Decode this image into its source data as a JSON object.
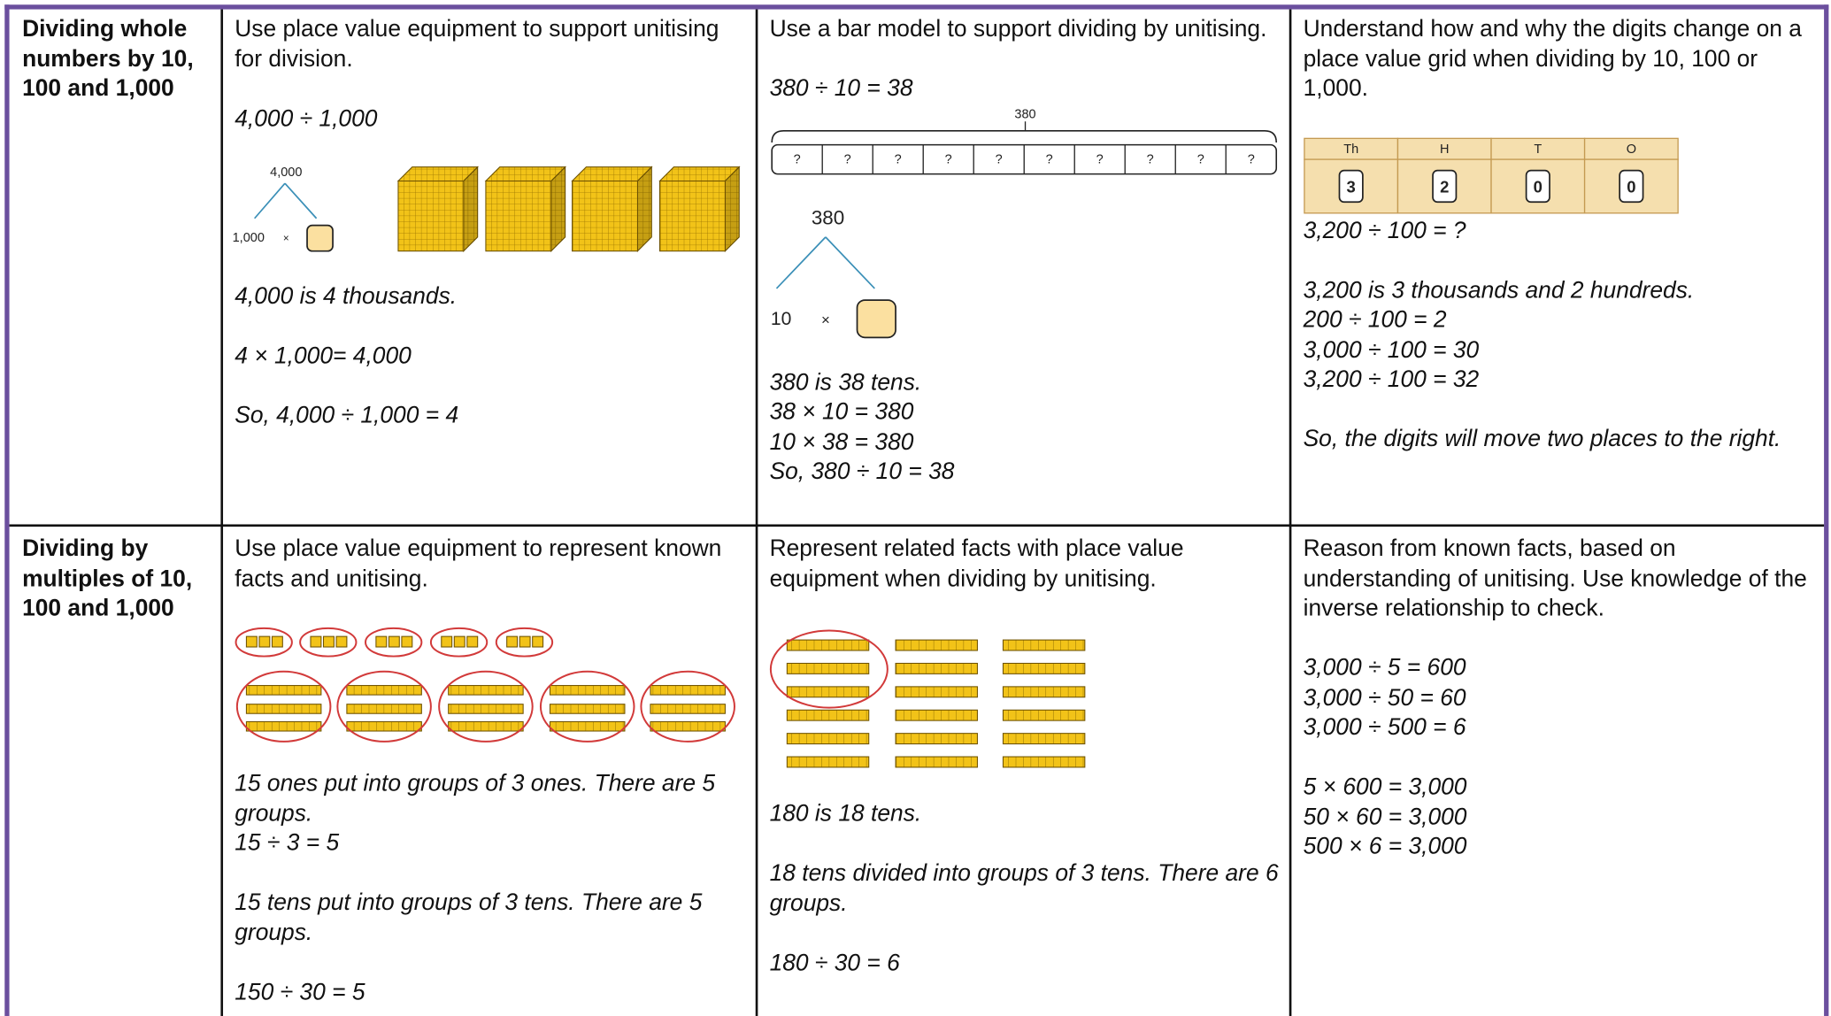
{
  "table": {
    "rows": [
      {
        "topic": "Dividing whole numbers by 10, 100 and 1,000",
        "cells": [
          {
            "intro": "Use place value equipment to support unitising for division.",
            "calculation": "4,000 ÷ 1,000",
            "number_bond": {
              "whole": "4,000",
              "part": "1,000",
              "operator": "×"
            },
            "paragraphs": [
              [
                "4,000 is 4 thousands."
              ],
              [
                "4 × 1,000= 4,000"
              ],
              [
                "So, 4,000 ÷ 1,000 = 4"
              ]
            ]
          },
          {
            "intro": "Use a bar model to support dividing by unitising.",
            "calculation": "380 ÷ 10 = 38",
            "bar_model": {
              "total": "380",
              "parts": [
                "?",
                "?",
                "?",
                "?",
                "?",
                "?",
                "?",
                "?",
                "?",
                "?"
              ]
            },
            "number_bond": {
              "whole": "380",
              "part": "10",
              "operator": "×"
            },
            "paragraphs": [
              [
                "380 is 38 tens.",
                "38 × 10 = 380",
                "10 × 38 = 380",
                "So, 380 ÷ 10 = 38"
              ]
            ]
          },
          {
            "intro": "Understand how and why the digits change on a place value grid when dividing by 10, 100 or 1,000.",
            "place_value_grid": {
              "headers": [
                "Th",
                "H",
                "T",
                "O"
              ],
              "digits": [
                "3",
                "2",
                "0",
                "0"
              ]
            },
            "paragraphs": [
              [
                "3,200 ÷ 100 = ?"
              ],
              [
                "3,200 is 3 thousands and 2 hundreds.",
                "200 ÷ 100 = 2",
                "3,000 ÷ 100 = 30",
                "3,200 ÷ 100 = 32"
              ],
              [
                "So, the digits will move two places to the right."
              ]
            ]
          }
        ]
      },
      {
        "topic": "Dividing by multiples of 10, 100 and 1,000",
        "cells": [
          {
            "intro": "Use place value equipment to represent known facts and unitising.",
            "paragraphs": [
              [
                "15 ones put into groups of 3 ones. There are 5 groups.",
                "15 ÷ 3 = 5"
              ],
              [
                "15 tens put into groups of 3 tens. There are 5 groups."
              ],
              [
                "150 ÷ 30 = 5"
              ]
            ]
          },
          {
            "intro": "Represent related facts with place value equipment when dividing by unitising.",
            "paragraphs": [
              [
                "180 is 18 tens."
              ],
              [
                "18 tens divided into groups of 3 tens. There are 6 groups."
              ],
              [
                "180 ÷ 30 = 6"
              ]
            ]
          },
          {
            "intro": "Reason from known facts, based on understanding of unitising. Use knowledge of the inverse relationship to check.",
            "paragraphs": [
              [
                "3,000 ÷ 5 = 600",
                "3,000 ÷ 50 = 60",
                "3,000 ÷ 500 = 6"
              ],
              [
                "5 × 600 = 3,000",
                "50 × 60 = 3,000",
                "500 × 6 = 3,000"
              ]
            ]
          }
        ]
      }
    ]
  }
}
